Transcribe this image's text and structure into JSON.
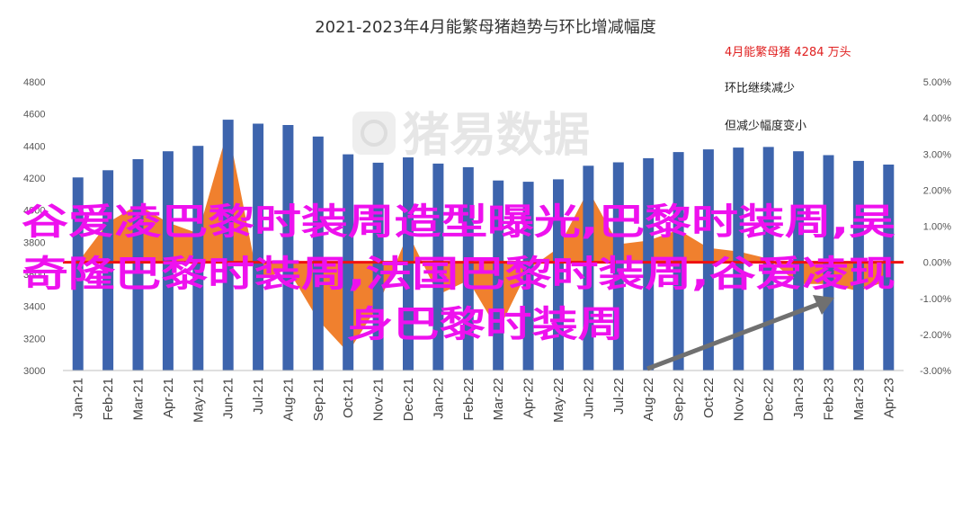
{
  "chart_data": {
    "type": "bar",
    "title": "2021-2023年4月能繁母猪趋势与环比增减幅度",
    "categories": [
      "Jan-21",
      "Feb-21",
      "Mar-21",
      "Apr-21",
      "May-21",
      "Jun-21",
      "Jul-21",
      "Aug-21",
      "Sep-21",
      "Oct-21",
      "Nov-21",
      "Dec-21",
      "Jan-22",
      "Feb-22",
      "Mar-22",
      "Apr-22",
      "May-22",
      "Jun-22",
      "Jul-22",
      "Aug-22",
      "Sep-22",
      "Oct-22",
      "Nov-22",
      "Dec-22",
      "Jan-23",
      "Feb-23",
      "Mar-23",
      "Apr-23"
    ],
    "series": [
      {
        "type": "bar",
        "axis": "left",
        "color": "#3d64ad",
        "values": [
          4204,
          4249,
          4318,
          4367,
          4401,
          4564,
          4539,
          4531,
          4459,
          4348,
          4296,
          4329,
          4290,
          4268,
          4185,
          4177,
          4192,
          4277,
          4298,
          4324,
          4362,
          4379,
          4390,
          4394,
          4367,
          4343,
          4307,
          4284
        ]
      },
      {
        "type": "area",
        "axis": "right",
        "color": "#f0802e",
        "values": [
          0.0,
          1.1,
          1.6,
          1.1,
          0.8,
          3.7,
          -0.5,
          -0.2,
          -1.6,
          -2.5,
          -1.2,
          0.8,
          -0.9,
          -0.5,
          -1.9,
          -0.2,
          0.4,
          2.0,
          0.5,
          0.6,
          0.9,
          0.4,
          0.3,
          0.1,
          -0.6,
          -0.6,
          -0.8,
          -0.5
        ]
      }
    ],
    "y_left": {
      "ylim": [
        3000,
        4800
      ],
      "ticks": [
        "3000",
        "3200",
        "3400",
        "3600",
        "3800",
        "4000",
        "4200",
        "4400",
        "4600",
        "4800"
      ]
    },
    "y_right": {
      "ylim": [
        -3,
        5
      ],
      "ticks": [
        "-3.00%",
        "-2.00%",
        "-1.00%",
        "0.00%",
        "1.00%",
        "2.00%",
        "3.00%",
        "4.00%",
        "5.00%"
      ]
    },
    "zero_line_color": "#ee1111",
    "grid": false,
    "annotations": [
      {
        "text": "4月能繁母猪 4284 万头",
        "color": "#e02020"
      },
      {
        "text": "环比继续减少",
        "color": "#222222"
      },
      {
        "text": "但减少幅度变小",
        "color": "#222222"
      }
    ],
    "arrow_color": "#707070",
    "watermark": "猪易数据"
  },
  "overlay": {
    "lines": [
      "谷爱凌巴黎时装周造型曝光,巴黎时装周,吴",
      "奇隆巴黎时装周,法国巴黎时装周,谷爱凌现",
      "身巴黎时装周"
    ],
    "color": "#ee11ee"
  }
}
